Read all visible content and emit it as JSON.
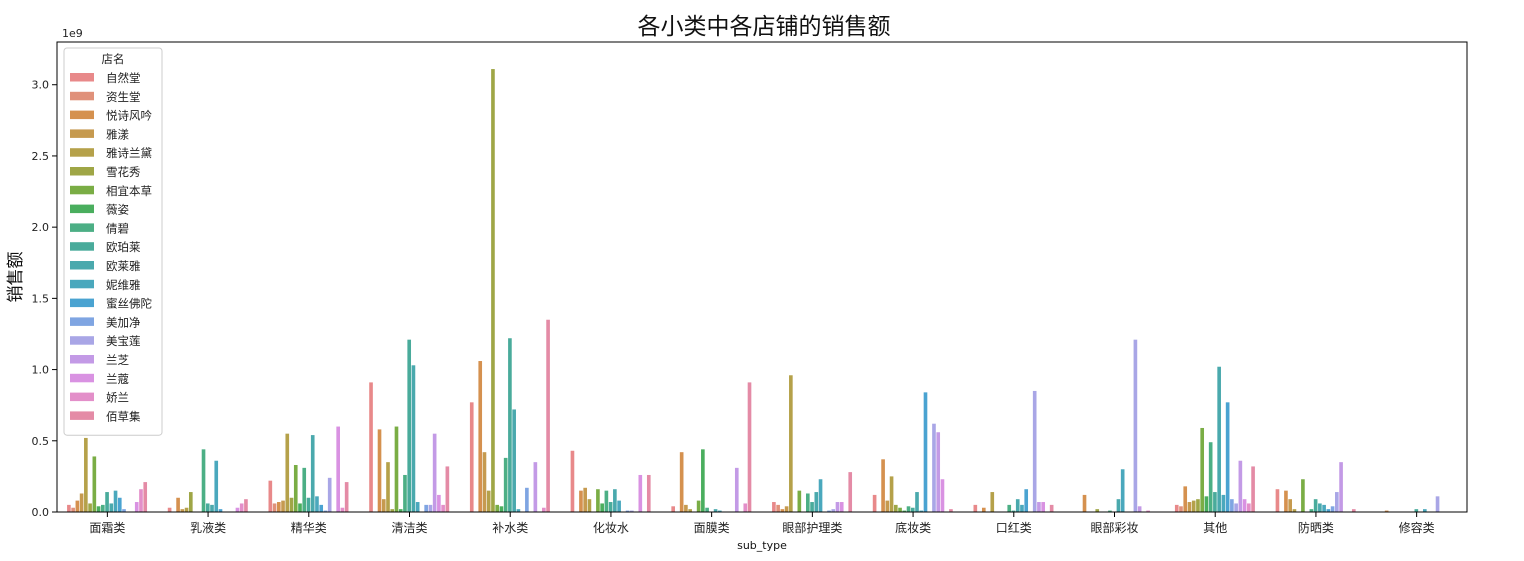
{
  "chart_data": {
    "type": "bar",
    "title": "各小类中各店铺的销售额",
    "xlabel": "sub_type",
    "ylabel": "销售额",
    "y_scale_label": "1e9",
    "y_multiplier": 1000000000,
    "ylim": [
      0,
      3.3
    ],
    "yticks": [
      0.0,
      0.5,
      1.0,
      1.5,
      2.0,
      2.5,
      3.0
    ],
    "ytick_labels": [
      "0.0",
      "0.5",
      "1.0",
      "1.5",
      "2.0",
      "2.5",
      "3.0"
    ],
    "grid": false,
    "legend": {
      "title": "店名",
      "placement": "top-left"
    },
    "categories": [
      "面霜类",
      "乳液类",
      "精华类",
      "清洁类",
      "补水类",
      "化妆水",
      "面膜类",
      "眼部护理类",
      "底妆类",
      "口红类",
      "眼部彩妆",
      "其他",
      "防晒类",
      "修容类"
    ],
    "series": [
      {
        "name": "自然堂",
        "color": "#e8898a",
        "values": [
          0.05,
          0.03,
          0.22,
          0.91,
          0.77,
          0.43,
          0.04,
          0.07,
          0.12,
          0.05,
          0.0,
          0.05,
          0.16,
          0.0
        ]
      },
      {
        "name": "资生堂",
        "color": "#e0917a",
        "values": [
          0.03,
          0.0,
          0.06,
          0.0,
          0.0,
          0.0,
          0.0,
          0.05,
          0.0,
          0.0,
          0.0,
          0.04,
          0.0,
          0.0
        ]
      },
      {
        "name": "悦诗风吟",
        "color": "#d5914f",
        "values": [
          0.08,
          0.1,
          0.07,
          0.58,
          1.06,
          0.15,
          0.42,
          0.02,
          0.37,
          0.03,
          0.12,
          0.18,
          0.15,
          0.01
        ]
      },
      {
        "name": "雅漾",
        "color": "#c69a4f",
        "values": [
          0.13,
          0.02,
          0.08,
          0.09,
          0.42,
          0.17,
          0.05,
          0.04,
          0.08,
          0.0,
          0.0,
          0.07,
          0.09,
          0.0
        ]
      },
      {
        "name": "雅诗兰黛",
        "color": "#b5a14a",
        "values": [
          0.52,
          0.03,
          0.55,
          0.35,
          0.15,
          0.09,
          0.02,
          0.96,
          0.25,
          0.14,
          0.0,
          0.08,
          0.02,
          0.0
        ]
      },
      {
        "name": "雪花秀",
        "color": "#9fa646",
        "values": [
          0.06,
          0.14,
          0.1,
          0.02,
          3.11,
          0.0,
          0.0,
          0.0,
          0.05,
          0.0,
          0.02,
          0.09,
          0.0,
          0.0
        ]
      },
      {
        "name": "相宜本草",
        "color": "#7aad45",
        "values": [
          0.39,
          0.0,
          0.33,
          0.6,
          0.05,
          0.16,
          0.08,
          0.15,
          0.03,
          0.0,
          0.0,
          0.59,
          0.23,
          0.0
        ]
      },
      {
        "name": "薇姿",
        "color": "#4aae5e",
        "values": [
          0.04,
          0.0,
          0.06,
          0.02,
          0.04,
          0.06,
          0.44,
          0.0,
          0.01,
          0.0,
          0.0,
          0.11,
          0.0,
          0.0
        ]
      },
      {
        "name": "倩碧",
        "color": "#4caf85",
        "values": [
          0.05,
          0.44,
          0.31,
          0.26,
          0.38,
          0.15,
          0.03,
          0.13,
          0.04,
          0.05,
          0.01,
          0.49,
          0.02,
          0.0
        ]
      },
      {
        "name": "欧珀莱",
        "color": "#49ab9b",
        "values": [
          0.14,
          0.06,
          0.1,
          1.21,
          1.22,
          0.07,
          0.0,
          0.07,
          0.03,
          0.01,
          0.0,
          0.14,
          0.09,
          0.02
        ]
      },
      {
        "name": "欧莱雅",
        "color": "#4aa9ad",
        "values": [
          0.06,
          0.05,
          0.54,
          1.03,
          0.72,
          0.16,
          0.02,
          0.14,
          0.14,
          0.09,
          0.09,
          1.02,
          0.06,
          0.0
        ]
      },
      {
        "name": "妮维雅",
        "color": "#4aa8bd",
        "values": [
          0.15,
          0.36,
          0.11,
          0.07,
          0.02,
          0.08,
          0.01,
          0.23,
          0.01,
          0.05,
          0.3,
          0.12,
          0.05,
          0.02
        ]
      },
      {
        "name": "蜜丝佛陀",
        "color": "#4aa3d1",
        "values": [
          0.1,
          0.02,
          0.05,
          0.0,
          0.0,
          0.0,
          0.0,
          0.0,
          0.84,
          0.16,
          0.0,
          0.77,
          0.02,
          0.0
        ]
      },
      {
        "name": "美加净",
        "color": "#7fa5e2",
        "values": [
          0.02,
          0.0,
          0.01,
          0.05,
          0.17,
          0.01,
          0.0,
          0.01,
          0.0,
          0.0,
          0.0,
          0.09,
          0.04,
          0.0
        ]
      },
      {
        "name": "美宝莲",
        "color": "#a9a6e6",
        "values": [
          0.0,
          0.0,
          0.24,
          0.05,
          0.0,
          0.01,
          0.0,
          0.02,
          0.62,
          0.85,
          1.21,
          0.06,
          0.14,
          0.11
        ]
      },
      {
        "name": "兰芝",
        "color": "#c39ae6",
        "values": [
          0.0,
          0.0,
          0.0,
          0.55,
          0.35,
          0.0,
          0.31,
          0.07,
          0.56,
          0.07,
          0.04,
          0.36,
          0.35,
          0.0
        ]
      },
      {
        "name": "兰蔻",
        "color": "#d992e2",
        "values": [
          0.07,
          0.03,
          0.6,
          0.12,
          0.0,
          0.26,
          0.0,
          0.07,
          0.23,
          0.07,
          0.0,
          0.09,
          0.0,
          0.0
        ]
      },
      {
        "name": "娇兰",
        "color": "#e38fc9",
        "values": [
          0.16,
          0.06,
          0.03,
          0.05,
          0.03,
          0.0,
          0.06,
          0.0,
          0.0,
          0.0,
          0.01,
          0.06,
          0.0,
          0.0
        ]
      },
      {
        "name": "佰草集",
        "color": "#e48ba6",
        "values": [
          0.21,
          0.09,
          0.21,
          0.32,
          1.35,
          0.26,
          0.91,
          0.28,
          0.02,
          0.05,
          0.0,
          0.32,
          0.02,
          0.0
        ]
      }
    ]
  }
}
